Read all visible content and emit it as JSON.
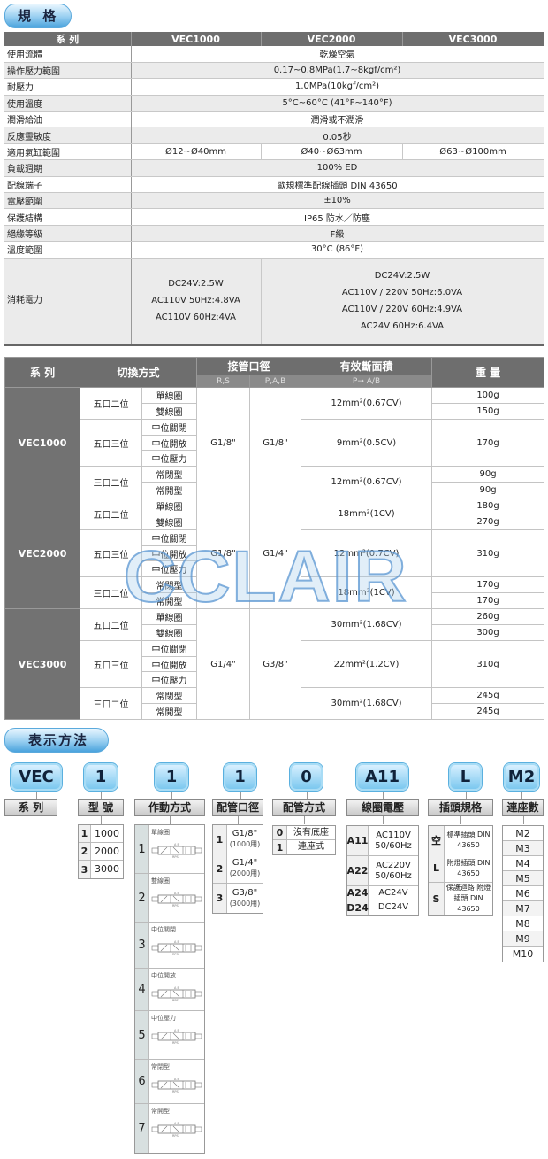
{
  "spec_section": {
    "title": "規 格"
  },
  "spec": {
    "header": [
      "系  列",
      "VEC1000",
      "VEC2000",
      "VEC3000"
    ],
    "rows": [
      {
        "label": "使用流體",
        "value": "乾燥空氣"
      },
      {
        "label": "操作壓力範圍",
        "value": "0.17~0.8MPa(1.7~8kgf/cm²)"
      },
      {
        "label": "耐壓力",
        "value": "1.0MPa(10kgf/cm²)"
      },
      {
        "label": "使用溫度",
        "value": "5°C~60°C (41°F~140°F)"
      },
      {
        "label": "潤滑給油",
        "value": "潤滑或不潤滑"
      },
      {
        "label": "反應靈敏度",
        "value": "0.05秒"
      },
      {
        "label": "適用氣缸範圍",
        "values": [
          "Ø12~Ø40mm",
          "Ø40~Ø63mm",
          "Ø63~Ø100mm"
        ]
      },
      {
        "label": "負載週期",
        "value": "100% ED"
      },
      {
        "label": "配線端子",
        "value": "歐規標準配線插頭 DIN 43650"
      },
      {
        "label": "電壓範圍",
        "value": "±10%"
      },
      {
        "label": "保護結構",
        "value": "IP65  防水／防塵"
      },
      {
        "label": "絕緣等級",
        "value": "F級"
      },
      {
        "label": "溫度範圍",
        "value": "30°C (86°F)"
      }
    ],
    "power": {
      "label": "消耗電力",
      "vec1000": [
        "DC24V:2.5W",
        "AC110V 50Hz:4.8VA",
        "AC110V 60Hz:4VA"
      ],
      "vec2000_3000": [
        "DC24V:2.5W",
        "AC110V / 220V 50Hz:6.0VA",
        "AC110V / 220V 60Hz:4.9VA",
        "AC24V 60Hz:6.4VA"
      ]
    }
  },
  "flow": {
    "header": {
      "series": "系  列",
      "switch": "切換方式",
      "port": "接管口徑",
      "port_rs": "R,S",
      "port_pab": "P,A,B",
      "area": "有效斷面積",
      "area_sub": "P→ A/B",
      "weight": "重 量"
    },
    "groups": [
      {
        "series": "VEC1000",
        "rs": "G1/8\"",
        "pab": "G1/8\"",
        "blocks": [
          {
            "type": "五口二位",
            "items": [
              "單線圈",
              "雙線圈"
            ],
            "area": "12mm²(0.67CV)",
            "weights": [
              "100g",
              "150g"
            ]
          },
          {
            "type": "五口三位",
            "items": [
              "中位關閉",
              "中位開放",
              "中位壓力"
            ],
            "area": "9mm²(0.5CV)",
            "weights": [
              "170g"
            ]
          },
          {
            "type": "三口二位",
            "items": [
              "常閉型",
              "常開型"
            ],
            "area": "12mm²(0.67CV)",
            "weights": [
              "90g",
              "90g"
            ]
          }
        ]
      },
      {
        "series": "VEC2000",
        "rs": "G1/8\"",
        "pab": "G1/4\"",
        "blocks": [
          {
            "type": "五口二位",
            "items": [
              "單線圈",
              "雙線圈"
            ],
            "area": "18mm²(1CV)",
            "weights": [
              "180g",
              "270g"
            ]
          },
          {
            "type": "五口三位",
            "items": [
              "中位關閉",
              "中位開放",
              "中位壓力"
            ],
            "area": "12mm²(0.7CV)",
            "weights": [
              "310g"
            ]
          },
          {
            "type": "三口二位",
            "items": [
              "常閉型",
              "常開型"
            ],
            "area": "18mm²(1CV)",
            "weights": [
              "170g",
              "170g"
            ]
          }
        ]
      },
      {
        "series": "VEC3000",
        "rs": "G1/4\"",
        "pab": "G3/8\"",
        "blocks": [
          {
            "type": "五口二位",
            "items": [
              "單線圈",
              "雙線圈"
            ],
            "area": "30mm²(1.68CV)",
            "weights": [
              "260g",
              "300g"
            ]
          },
          {
            "type": "五口三位",
            "items": [
              "中位關閉",
              "中位開放",
              "中位壓力"
            ],
            "area": "22mm²(1.2CV)",
            "weights": [
              "310g"
            ]
          },
          {
            "type": "三口二位",
            "items": [
              "常閉型",
              "常開型"
            ],
            "area": "30mm²(1.68CV)",
            "weights": [
              "245g",
              "245g"
            ]
          }
        ]
      }
    ]
  },
  "watermark": "CCLAIR",
  "ordering": {
    "title": "表示方法",
    "codes": [
      "VEC",
      "1",
      "1",
      "1",
      "0",
      "A11",
      "L",
      "M2"
    ],
    "labels": [
      "系  列",
      "型  號",
      "作動方式",
      "配管口徑",
      "配管方式",
      "線圈電壓",
      "插頭規格",
      "連座數"
    ],
    "model": [
      {
        "k": "1",
        "v": "1000"
      },
      {
        "k": "2",
        "v": "2000"
      },
      {
        "k": "3",
        "v": "3000"
      }
    ],
    "actuation": [
      {
        "k": "1",
        "v": "單線圈"
      },
      {
        "k": "2",
        "v": "雙線圈"
      },
      {
        "k": "3",
        "v": "中位關閉"
      },
      {
        "k": "4",
        "v": "中位開放"
      },
      {
        "k": "5",
        "v": "中位壓力"
      },
      {
        "k": "6",
        "v": "常閉型"
      },
      {
        "k": "7",
        "v": "常開型"
      }
    ],
    "port": [
      {
        "k": "1",
        "v": "G1/8\"",
        "n": "(1000用)"
      },
      {
        "k": "2",
        "v": "G1/4\"",
        "n": "(2000用)"
      },
      {
        "k": "3",
        "v": "G3/8\"",
        "n": "(3000用)"
      }
    ],
    "piping": [
      {
        "k": "0",
        "v": "沒有底座"
      },
      {
        "k": "1",
        "v": "連座式"
      }
    ],
    "voltage": [
      {
        "k": "A11",
        "v": "AC110V 50/60Hz"
      },
      {
        "k": "A22",
        "v": "AC220V 50/60Hz"
      },
      {
        "k": "A24",
        "v": "AC24V"
      },
      {
        "k": "D24",
        "v": "DC24V"
      }
    ],
    "plug": [
      {
        "k": "空",
        "v": "標準插頭 DIN 43650"
      },
      {
        "k": "L",
        "v": "附燈插頭 DIN 43650"
      },
      {
        "k": "S",
        "v": "保護迴路 附燈插頭 DIN 43650"
      }
    ],
    "stations": [
      "M2",
      "M3",
      "M4",
      "M5",
      "M6",
      "M7",
      "M8",
      "M9",
      "M10"
    ]
  },
  "colors": {
    "header_gray": "#6e6e6e",
    "badge_blue": "#4aa3dd",
    "code_blue": "#7cc8ef"
  }
}
